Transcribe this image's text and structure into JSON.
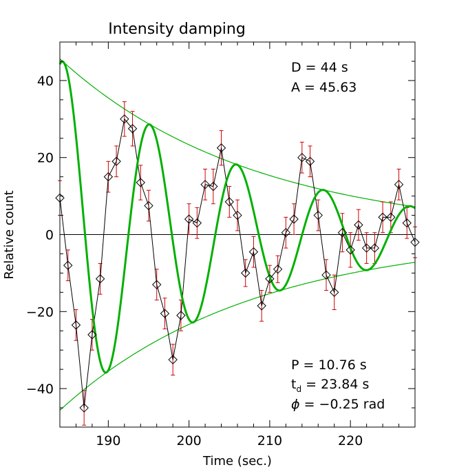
{
  "chart_data": {
    "type": "scatter",
    "title": "Intensity damping",
    "xlabel": "Time (sec.)",
    "ylabel": "Relative count",
    "xlim": [
      184,
      228
    ],
    "ylim": [
      -50,
      50
    ],
    "xticks": [
      190,
      200,
      210,
      220
    ],
    "yticks": [
      -40,
      -20,
      0,
      20,
      40
    ],
    "grid": false,
    "annotations": {
      "D_label": "D = 44 s",
      "A_label": "A = 45.63",
      "P_label": "P = 10.76 s",
      "td_label_main": "t",
      "td_label_sub": "d",
      "td_label_value": " = 23.84 s",
      "phi_label_symbol": "ϕ",
      "phi_label_value": " = −0.25 rad"
    },
    "fit_params": {
      "amplitude": 45.63,
      "period_s": 10.76,
      "damping_time_s": 23.84,
      "phase_rad": -0.25
    },
    "series": [
      {
        "name": "observed",
        "style": "line-with-diamond-markers",
        "color": "#000000",
        "errorbar_color": "#cc0000",
        "x": [
          184,
          185,
          186,
          187,
          188,
          189,
          190,
          191,
          192,
          193,
          194,
          195,
          196,
          197,
          198,
          199,
          200,
          201,
          202,
          203,
          204,
          205,
          206,
          207,
          208,
          209,
          210,
          211,
          212,
          213,
          214,
          215,
          216,
          217,
          218,
          219,
          220,
          221,
          222,
          223,
          224,
          225,
          226,
          227,
          228
        ],
        "y": [
          9.5,
          -8,
          -23.5,
          -45,
          -26,
          -11.5,
          15,
          19,
          30,
          27.5,
          13.5,
          7.5,
          -13,
          -20.5,
          -32.5,
          -21,
          4,
          3,
          13,
          12.5,
          22.5,
          8.5,
          5,
          -10,
          -4.5,
          -18.5,
          -11.5,
          -9,
          0.5,
          4,
          20,
          19,
          5,
          -10.5,
          -15,
          0.5,
          -4,
          2.5,
          -3.5,
          -3.5,
          4.5,
          4.5,
          13,
          3,
          -2
        ],
        "err": [
          4.5,
          4,
          4,
          4.5,
          4,
          4,
          4,
          4,
          4.5,
          4.5,
          4.5,
          4,
          4,
          4,
          4,
          4,
          4,
          4,
          4,
          4.5,
          4.5,
          4,
          4,
          3.5,
          4,
          4,
          3.5,
          3.5,
          4,
          4,
          4,
          4,
          4,
          4,
          4.5,
          5,
          4.5,
          4,
          4,
          4,
          4,
          4,
          4,
          4,
          4
        ]
      },
      {
        "name": "fit",
        "style": "thick-line",
        "color": "#00b000"
      },
      {
        "name": "envelope",
        "style": "thin-line",
        "color": "#00b000"
      }
    ]
  }
}
